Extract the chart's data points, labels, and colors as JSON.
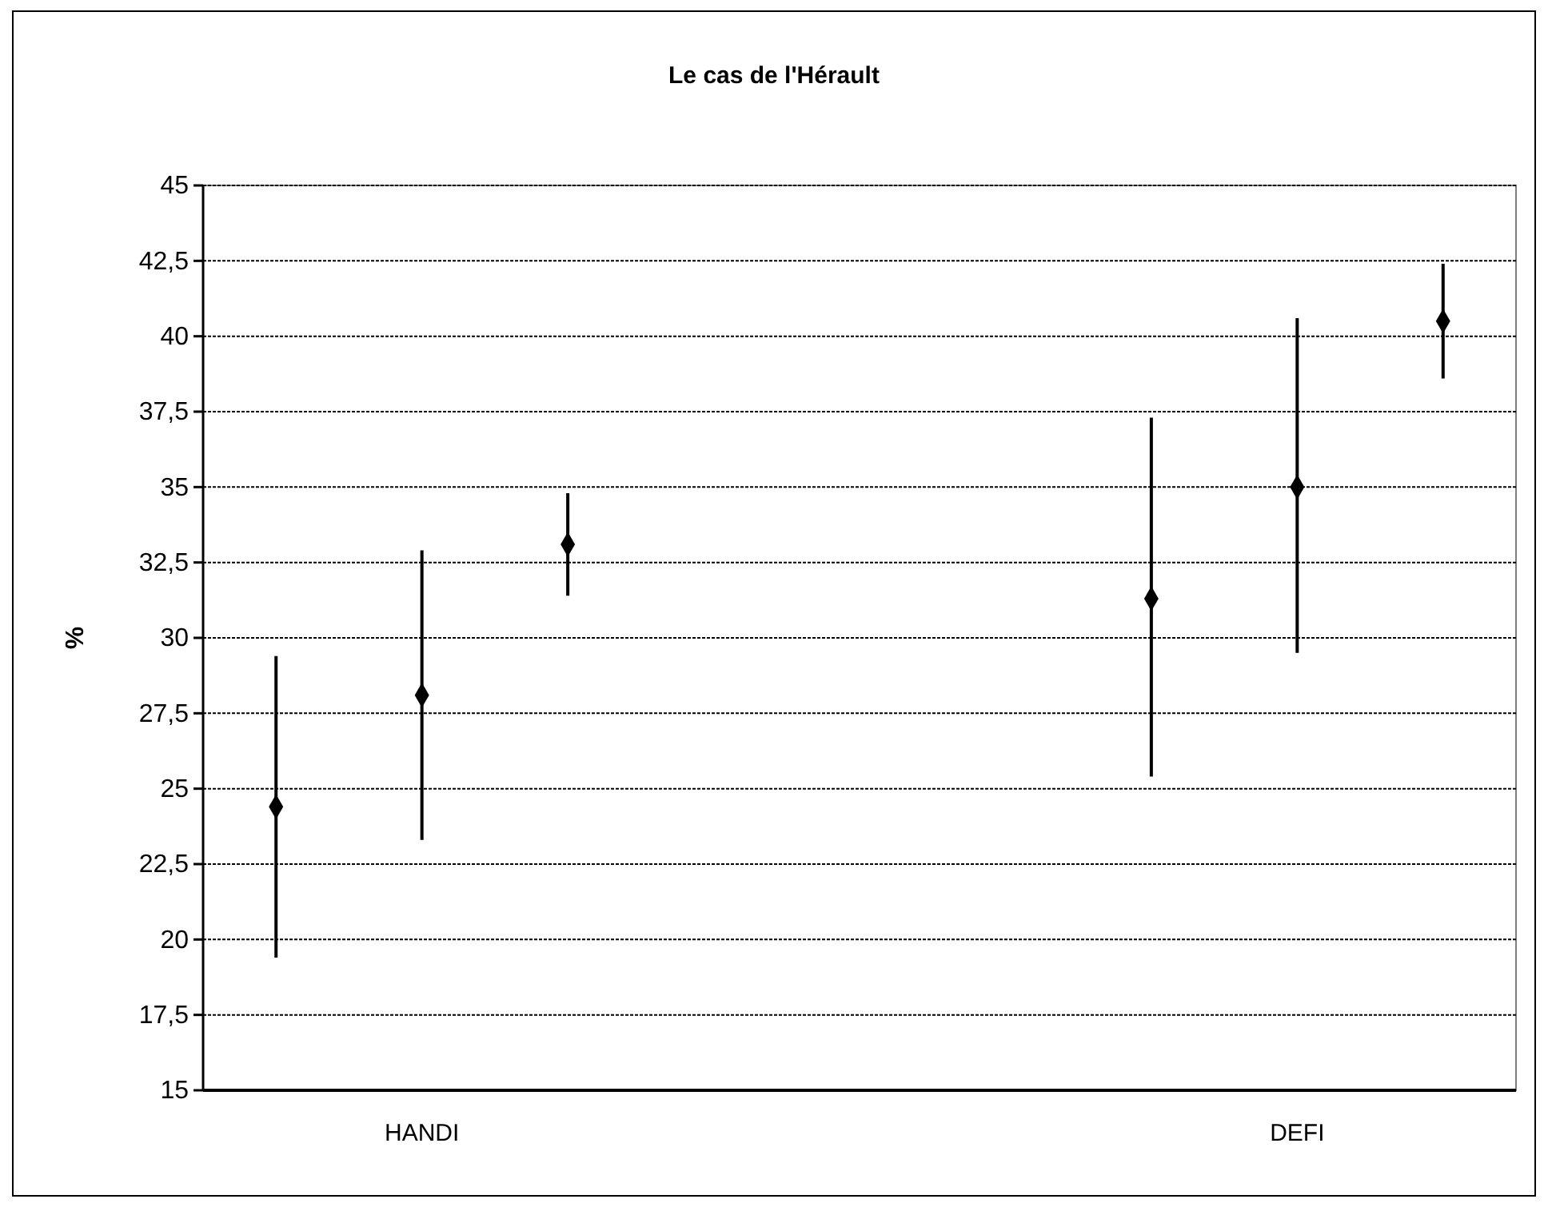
{
  "chart_data": {
    "type": "scatter",
    "title": "Le cas de l'Hérault",
    "ylabel": "%",
    "categories": [
      null,
      "HANDI",
      null,
      null,
      null,
      null,
      null,
      "DEFI",
      null
    ],
    "values": [
      24.4,
      28.1,
      33.1,
      null,
      null,
      null,
      31.3,
      35.0,
      40.5
    ],
    "errors": [
      [
        19.4,
        29.4
      ],
      [
        23.3,
        32.9
      ],
      [
        31.4,
        34.8
      ],
      null,
      null,
      null,
      [
        25.4,
        37.3
      ],
      [
        29.5,
        40.6
      ],
      [
        38.6,
        42.4
      ]
    ],
    "color": "#000000",
    "marker": "diamond",
    "grid": "y",
    "ylim": [
      15,
      45
    ],
    "yticks": [
      15,
      {
        "value": 17.5,
        "label": "17,5"
      },
      20,
      {
        "value": 22.5,
        "label": "22,5"
      },
      25,
      {
        "value": 27.5,
        "label": "27,5"
      },
      30,
      {
        "value": 32.5,
        "label": "32,5"
      },
      35,
      {
        "value": 37.5,
        "label": "37,5"
      },
      40,
      {
        "value": 42.5,
        "label": "42,5"
      },
      45
    ]
  }
}
